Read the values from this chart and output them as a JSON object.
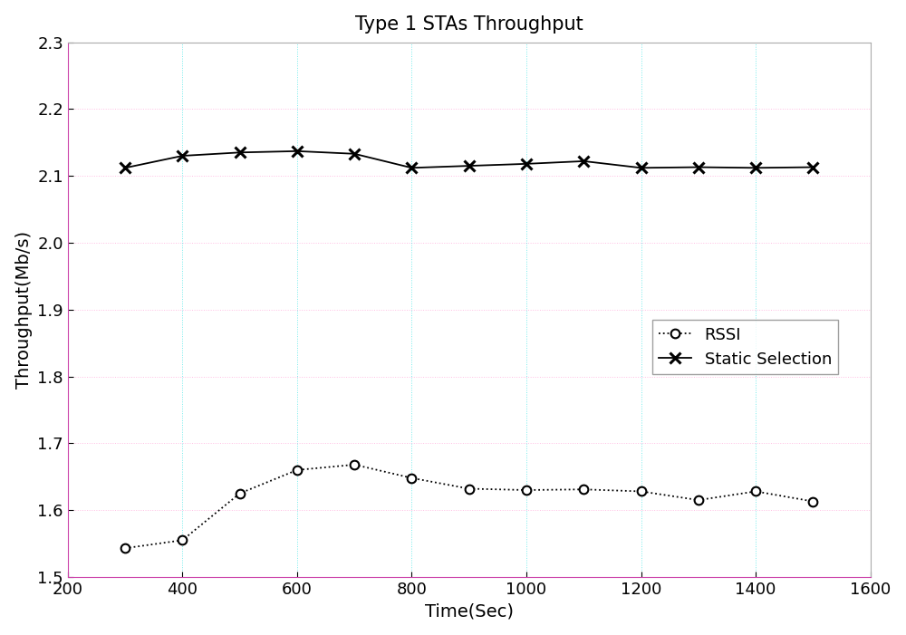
{
  "title": "Type 1 STAs Throughput",
  "xlabel": "Time(Sec)",
  "ylabel": "Throughput(Mb/s)",
  "xlim": [
    200,
    1600
  ],
  "ylim": [
    1.5,
    2.3
  ],
  "xticks": [
    200,
    400,
    600,
    800,
    1000,
    1200,
    1400,
    1600
  ],
  "yticks": [
    1.5,
    1.6,
    1.7,
    1.8,
    1.9,
    2.0,
    2.1,
    2.2,
    2.3
  ],
  "rssi": {
    "x": [
      300,
      400,
      500,
      600,
      700,
      800,
      900,
      1000,
      1100,
      1200,
      1300,
      1400,
      1500
    ],
    "y": [
      1.543,
      1.555,
      1.625,
      1.66,
      1.668,
      1.648,
      1.632,
      1.63,
      1.631,
      1.628,
      1.615,
      1.628,
      1.613
    ],
    "color": "#000000",
    "linestyle": ":",
    "marker": "o",
    "markersize": 7,
    "linewidth": 1.3,
    "label": "RSSI"
  },
  "static": {
    "x": [
      300,
      400,
      500,
      600,
      700,
      800,
      900,
      1000,
      1100,
      1200,
      1300,
      1400,
      1500
    ],
    "y": [
      2.112,
      2.13,
      2.135,
      2.137,
      2.133,
      2.112,
      2.115,
      2.118,
      2.122,
      2.112,
      2.113,
      2.112,
      2.113
    ],
    "color": "#000000",
    "linestyle": "-",
    "marker": "x",
    "markersize": 9,
    "linewidth": 1.3,
    "label": "Static Selection"
  },
  "grid_color_h": "#ff88cc",
  "grid_color_v": "#00dddd",
  "grid_linestyle": ":",
  "grid_alpha": 0.55,
  "grid_linewidth": 0.7,
  "background_color": "#ffffff",
  "title_fontsize": 15,
  "label_fontsize": 14,
  "tick_fontsize": 13,
  "legend_fontsize": 13,
  "spine_bottom_color": "#cc44aa",
  "spine_left_color": "#cc44aa",
  "spine_top_color": "#aaaaaa",
  "spine_right_color": "#aaaaaa",
  "legend_edge_color": "#888888"
}
